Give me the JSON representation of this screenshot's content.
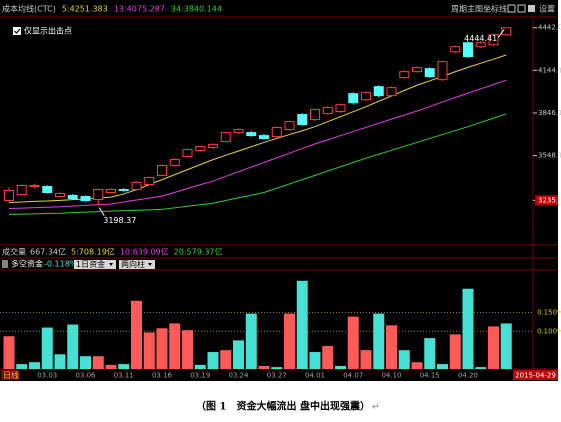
{
  "toolbar": [
    "周期",
    "主图",
    "坐标线",
    "设置"
  ],
  "volume_panel": {
    "title": "成交量",
    "items": [
      "667.34亿",
      "5:708.19亿",
      "10:639.09亿",
      "20:579.37亿"
    ],
    "colors": [
      "#c8c8c8",
      "#e8d048",
      "#e040e0",
      "#30d030"
    ]
  },
  "caption": "（图 1　资金大幅流出 盘中出现强震）",
  "caption_mark": "↵",
  "chart_data": [
    {
      "type": "candlestick",
      "title": "成本均线(CTC)",
      "checkbox_label": "仅显示出击点",
      "up_color": "#ff3c3c",
      "down_color": "#54fcfc",
      "open": [
        3234,
        3276,
        3332,
        3332,
        3262,
        3269,
        3262,
        3241,
        3290,
        3311,
        3311,
        3346,
        3409,
        3479,
        3542,
        3583,
        3604,
        3646,
        3709,
        3709,
        3688,
        3681,
        3730,
        3835,
        3800,
        3842,
        3856,
        3981,
        3939,
        4030,
        3967,
        4093,
        4135,
        4156,
        4079,
        4274,
        4337,
        4309,
        4323,
        4393
      ],
      "high": [
        3325,
        3346,
        3350,
        3340,
        3295,
        3280,
        3270,
        3318,
        3320,
        3322,
        3368,
        3402,
        3486,
        3530,
        3598,
        3620,
        3635,
        3716,
        3738,
        3720,
        3700,
        3752,
        3792,
        3845,
        3878,
        3895,
        3912,
        3990,
        3998,
        4040,
        4032,
        4145,
        4170,
        4165,
        4212,
        4318,
        4345,
        4350,
        4400,
        4444.41
      ],
      "low": [
        3225,
        3270,
        3318,
        3283,
        3255,
        3240,
        3225,
        3198.37,
        3280,
        3295,
        3305,
        3340,
        3402,
        3470,
        3535,
        3575,
        3595,
        3640,
        3700,
        3680,
        3660,
        3675,
        3722,
        3755,
        3790,
        3835,
        3848,
        3905,
        3930,
        3955,
        3960,
        4085,
        4128,
        4090,
        4070,
        4265,
        4230,
        4300,
        4315,
        4385
      ],
      "close": [
        3304,
        3339,
        3339,
        3290,
        3283,
        3248,
        3234,
        3311,
        3311,
        3304,
        3360,
        3395,
        3479,
        3521,
        3590,
        3611,
        3625,
        3709,
        3730,
        3688,
        3667,
        3744,
        3786,
        3765,
        3870,
        3884,
        3904,
        3918,
        3988,
        3967,
        4023,
        4135,
        4163,
        4100,
        4205,
        4309,
        4240,
        4337,
        4393,
        4442
      ],
      "high_label": "4444.41",
      "low_label": "3198.37",
      "series": [
        {
          "name": "5:4251.383",
          "color": "#e8d048",
          "values": [
            3220,
            3224,
            3228,
            3231,
            3235,
            3240,
            3245,
            3250,
            3258,
            3280,
            3310,
            3345,
            3380,
            3415,
            3450,
            3485,
            3520,
            3550,
            3580,
            3610,
            3640,
            3668,
            3695,
            3722,
            3750,
            3785,
            3820,
            3855,
            3890,
            3928,
            3965,
            4003,
            4040,
            4071,
            4102,
            4134,
            4165,
            4194,
            4222,
            4251.383
          ]
        },
        {
          "name": "13:4075.287",
          "color": "#e040e0",
          "values": [
            3178,
            3181,
            3184,
            3187,
            3190,
            3195,
            3200,
            3205,
            3210,
            3224,
            3238,
            3251,
            3265,
            3291,
            3318,
            3344,
            3370,
            3403,
            3435,
            3468,
            3500,
            3533,
            3565,
            3598,
            3630,
            3659,
            3688,
            3716,
            3745,
            3774,
            3803,
            3831,
            3860,
            3891,
            3923,
            3954,
            3985,
            4015,
            4045,
            4075.287
          ]
        },
        {
          "name": "34:3840.144",
          "color": "#30d030",
          "values": [
            3137,
            3139,
            3141,
            3143,
            3145,
            3149,
            3153,
            3156,
            3160,
            3163,
            3166,
            3169,
            3172,
            3183,
            3194,
            3204,
            3215,
            3234,
            3253,
            3271,
            3290,
            3320,
            3350,
            3380,
            3410,
            3440,
            3470,
            3500,
            3530,
            3558,
            3585,
            3613,
            3640,
            3668,
            3695,
            3723,
            3750,
            3780,
            3810,
            3840.144
          ]
        }
      ],
      "ylim": [
        2930,
        4510
      ],
      "yticks": [
        {
          "value": 4442,
          "label": "4442.0"
        },
        4144.1,
        3846.1,
        3548.1,
        {
          "value": 3235,
          "label": "3235.0"
        }
      ]
    },
    {
      "type": "bar",
      "title": "多空资金",
      "value_label": "-0.118%",
      "dropdowns": [
        "1日资金",
        "两向柱"
      ],
      "period_label": "日线",
      "cursor_date": "2015-04-29",
      "categories": [
        null,
        null,
        null,
        "03.03",
        null,
        null,
        "03.06",
        null,
        null,
        "03.11",
        null,
        null,
        "03.16",
        null,
        null,
        "03.19",
        null,
        null,
        "03.24",
        null,
        null,
        "03.27",
        null,
        null,
        "04.01",
        null,
        null,
        "04.07",
        null,
        null,
        "04.10",
        null,
        null,
        "04.15",
        null,
        null,
        "04.20",
        null,
        null,
        null
      ],
      "series": [
        {
          "color": "#ff5a5a",
          "values": [
            0.087,
            null,
            null,
            null,
            null,
            null,
            null,
            0.034,
            0.011,
            null,
            0.181,
            0.097,
            0.108,
            0.121,
            0.103,
            null,
            null,
            0.05,
            null,
            null,
            0.008,
            null,
            0.147,
            null,
            null,
            0.061,
            null,
            0.139,
            0.05,
            null,
            0.116,
            null,
            0.018,
            null,
            null,
            0.092,
            null,
            null,
            0.113,
            null
          ]
        },
        {
          "color": "#48e0d4",
          "values": [
            null,
            0.013,
            0.018,
            0.11,
            0.039,
            0.118,
            0.034,
            null,
            null,
            0.013,
            null,
            null,
            null,
            null,
            null,
            0.011,
            0.045,
            null,
            0.076,
            0.147,
            null,
            0.005,
            null,
            0.234,
            0.045,
            null,
            0.008,
            null,
            null,
            0.147,
            null,
            0.05,
            null,
            0.082,
            0.013,
            null,
            0.213,
            0.005,
            null,
            0.121
          ]
        }
      ],
      "ylim": [
        0,
        0.26
      ],
      "yticks": [
        {
          "value": 0.15,
          "label": "0.150%"
        },
        {
          "value": 0.1,
          "label": "0.100%"
        }
      ],
      "grid": true
    }
  ]
}
